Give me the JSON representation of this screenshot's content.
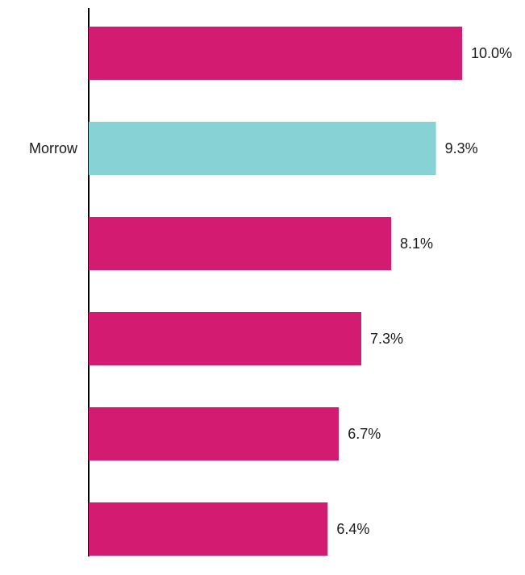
{
  "chart_data": {
    "type": "bar",
    "orientation": "horizontal",
    "title": "",
    "xlabel": "",
    "ylabel": "",
    "categories": [
      "",
      "Morrow",
      "",
      "",
      "",
      ""
    ],
    "values": [
      10.0,
      9.3,
      8.1,
      7.3,
      6.7,
      6.4
    ],
    "value_labels": [
      "10.0%",
      "9.3%",
      "8.1%",
      "7.3%",
      "6.7%",
      "6.4%"
    ],
    "highlight_index": 1,
    "xlim": [
      0,
      10.0
    ],
    "grid": false,
    "legend": "none",
    "colors": {
      "default": "#d41b72",
      "highlight": "#87d2d4",
      "axis": "#000000"
    }
  }
}
